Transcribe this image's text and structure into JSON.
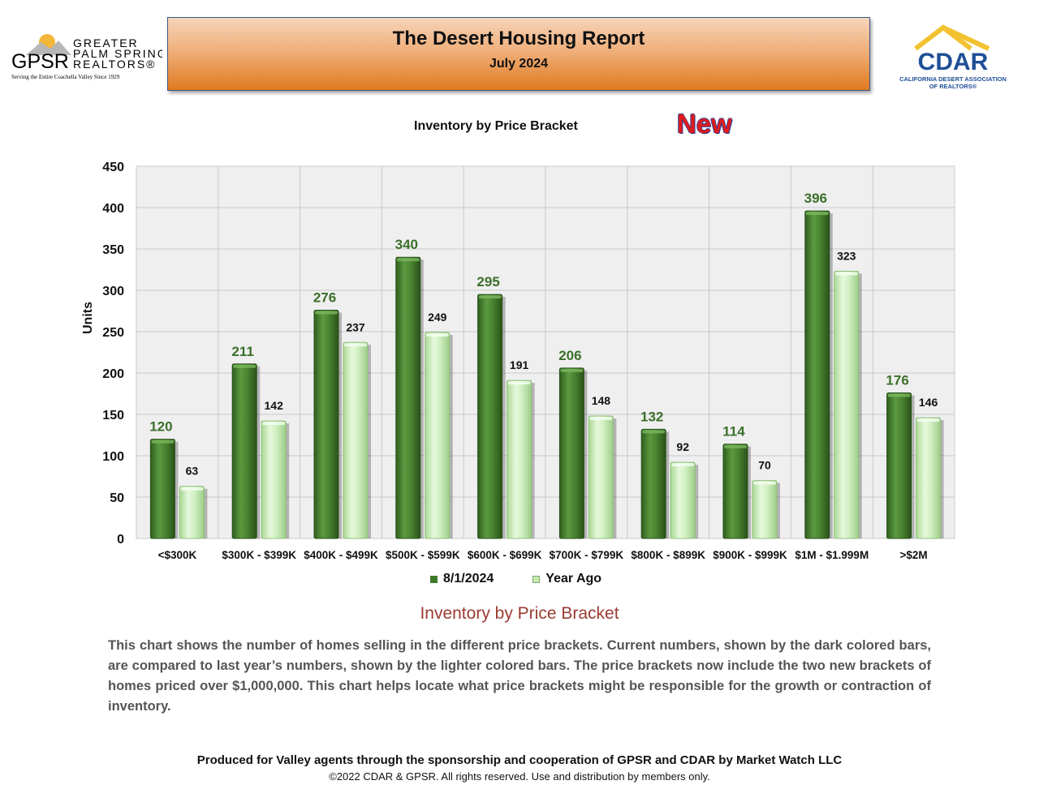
{
  "header": {
    "title": "The Desert Housing Report",
    "subtitle": "July 2024"
  },
  "logos": {
    "left": {
      "letters": "GPSR",
      "name_line1": "GREATER",
      "name_line2": "PALM SPRINGS",
      "name_line3": "REALTORS®",
      "tagline": "Serving the Entire Coachella Valley Since 1929"
    },
    "right": {
      "letters": "CDAR",
      "name_line1": "CALIFORNIA DESERT ASSOCIATION",
      "name_line2": "OF REALTORS®"
    }
  },
  "chart_heading": "Inventory by Price Bracket",
  "new_label": "New",
  "chart_data": {
    "type": "bar",
    "title": "Inventory by Price Bracket",
    "xlabel": "",
    "ylabel": "Units",
    "ylim": [
      0,
      450
    ],
    "yticks": [
      0,
      50,
      100,
      150,
      200,
      250,
      300,
      350,
      400,
      450
    ],
    "grid": true,
    "legend_position": "bottom",
    "categories": [
      "<$300K",
      "$300K - $399K",
      "$400K - $499K",
      "$500K - $599K",
      "$600K - $699K",
      "$700K - $799K",
      "$800K - $899K",
      "$900K - $999K",
      "$1M - $1.999M",
      ">$2M"
    ],
    "series": [
      {
        "name": "8/1/2024",
        "values": [
          120,
          211,
          276,
          340,
          295,
          206,
          132,
          114,
          396,
          176
        ],
        "color": "#3f7a2b"
      },
      {
        "name": "Year Ago",
        "values": [
          63,
          142,
          237,
          249,
          191,
          148,
          92,
          70,
          323,
          146
        ],
        "color": "#c6ecb4"
      }
    ]
  },
  "section_title": "Inventory by Price Bracket",
  "description": "This chart shows the number of homes selling in the different price brackets. Current numbers, shown by the dark colored bars, are compared to last year’s numbers, shown by the lighter colored bars. The price brackets now include the two new brackets of homes priced over $1,000,000. This chart helps locate what price brackets might be responsible for the growth or contraction of inventory.",
  "footer": {
    "line": "Produced for Valley agents through the sponsorship and cooperation of GPSR and CDAR by Market Watch LLC",
    "copyright": "©2022 CDAR & GPSR.  All rights reserved.  Use and distribution by members only."
  }
}
